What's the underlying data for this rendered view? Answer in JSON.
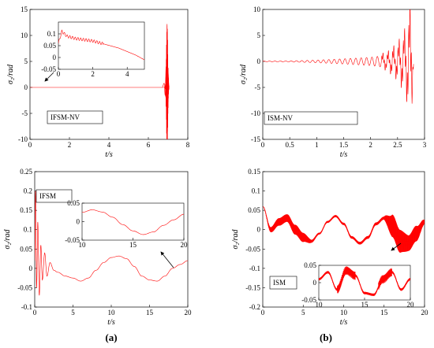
{
  "figure": {
    "panel_labels": [
      "(a)",
      "(b)"
    ]
  },
  "chart_data": [
    {
      "id": "ifsm-nv",
      "type": "line",
      "xlabel": "t/s",
      "ylabel": "σ₂/rad",
      "xlim": [
        0,
        8
      ],
      "ylim": [
        -10,
        15
      ],
      "xticks": [
        0,
        2,
        4,
        6,
        8
      ],
      "yticks": [
        -10,
        -5,
        0,
        5,
        10,
        15
      ],
      "label": "IFSM-NV",
      "grid": false,
      "series": [
        {
          "color": "#ff0000",
          "x": [
            0,
            6.7,
            6.8,
            6.85,
            6.9,
            6.93,
            6.95,
            6.97,
            7.0,
            7.05
          ],
          "y": [
            0,
            0,
            0.8,
            -1.5,
            4,
            -4,
            12.2,
            -6,
            3,
            0
          ]
        }
      ],
      "inset": {
        "xlim": [
          0,
          5
        ],
        "ylim": [
          -0.05,
          0.15
        ],
        "xticks": [
          0,
          2,
          4
        ],
        "yticks": [
          -0.05,
          0,
          0.05,
          0.1
        ],
        "yticklabels": [
          "-0.05",
          "0",
          "0.05",
          "0.1"
        ],
        "series": [
          {
            "color": "#ff0000",
            "x": [
              0,
              0.2,
              0.5,
              1,
              1.5,
              2,
              2.5,
              3,
              3.5,
              4,
              4.5,
              5
            ],
            "y": [
              0.06,
              0.11,
              0.09,
              0.08,
              0.075,
              0.07,
              0.06,
              0.05,
              0.04,
              0.025,
              0.01,
              -0.01
            ]
          }
        ]
      }
    },
    {
      "id": "ism-nv",
      "type": "line",
      "xlabel": "t/s",
      "ylabel": "σ₂/rad",
      "xlim": [
        0,
        3
      ],
      "ylim": [
        -15,
        10
      ],
      "xticks": [
        0,
        0.5,
        1,
        1.5,
        2,
        2.5,
        3
      ],
      "yticks": [
        -15,
        -10,
        -5,
        0,
        5,
        10
      ],
      "label": "ISM-NV",
      "grid": false,
      "series": [
        {
          "color": "#ff0000",
          "amplitude_envelope": {
            "t": [
              0,
              0.5,
              1,
              1.5,
              2,
              2.3,
              2.5,
              2.65,
              2.75,
              2.8
            ],
            "a": [
              0.05,
              0.1,
              0.25,
              0.5,
              0.8,
              1.2,
              2.5,
              4.5,
              8.5,
              0
            ]
          },
          "oscillation_period_s": 0.1
        }
      ]
    },
    {
      "id": "ifsm",
      "type": "line",
      "xlabel": "t/s",
      "ylabel": "σ₂/rad",
      "xlim": [
        0,
        20
      ],
      "ylim": [
        -0.1,
        0.25
      ],
      "xticks": [
        0,
        5,
        10,
        15,
        20
      ],
      "yticks": [
        -0.1,
        -0.05,
        0,
        0.05,
        0.1,
        0.15,
        0.2,
        0.25
      ],
      "yticklabels": [
        "-0.1",
        "-0.05",
        "0",
        "0.05",
        "0.1",
        "0.15",
        "0.2",
        "0.25"
      ],
      "label": "IFSM",
      "grid": false,
      "series": [
        {
          "color": "#ff0000",
          "x": [
            0,
            0.1,
            0.25,
            0.4,
            0.6,
            0.8,
            1,
            1.3,
            1.6,
            2,
            2.5,
            3,
            4,
            5,
            6,
            7,
            8,
            9,
            10,
            11,
            12,
            13,
            14,
            15,
            16,
            17,
            18,
            19,
            20
          ],
          "y": [
            0.02,
            0.2,
            -0.05,
            0.12,
            -0.07,
            0.06,
            -0.03,
            0.04,
            -0.02,
            0.015,
            -0.005,
            -0.01,
            -0.02,
            -0.025,
            -0.033,
            -0.025,
            -0.005,
            0.015,
            0.028,
            0.032,
            0.025,
            0.005,
            -0.02,
            -0.03,
            -0.033,
            -0.02,
            0.0,
            0.01,
            0.02
          ]
        }
      ],
      "inset": {
        "xlim": [
          10,
          20
        ],
        "ylim": [
          -0.05,
          0.05
        ],
        "xticks": [
          10,
          15,
          20
        ],
        "yticks": [
          -0.05,
          0,
          0.05
        ],
        "yticklabels": [
          "-0.05",
          "0",
          "0.05"
        ],
        "series": [
          {
            "color": "#ff0000",
            "x": [
              10,
              11,
              12,
              13,
              14,
              15,
              16,
              17,
              18,
              19,
              20
            ],
            "y": [
              0.025,
              0.032,
              0.026,
              0.012,
              -0.008,
              -0.025,
              -0.035,
              -0.028,
              -0.01,
              0.005,
              0.02
            ]
          }
        ]
      }
    },
    {
      "id": "ism",
      "type": "line",
      "xlabel": "t/s",
      "ylabel": "σ₂/rad",
      "xlim": [
        0,
        20
      ],
      "ylim": [
        -0.2,
        0.15
      ],
      "xticks": [
        0,
        5,
        10,
        15,
        20
      ],
      "yticks": [
        -0.2,
        -0.15,
        -0.1,
        -0.05,
        0,
        0.05,
        0.1,
        0.15
      ],
      "yticklabels": [
        "-0.2",
        "-0.15",
        "-0.1",
        "-0.05",
        "0",
        "0.05",
        "0.1",
        "0.15"
      ],
      "label": "ISM",
      "grid": false,
      "series": [
        {
          "color": "#ff0000",
          "x": [
            0,
            1,
            2,
            3,
            4,
            5,
            6,
            7,
            8,
            9,
            10,
            11,
            12,
            13,
            14,
            15,
            16,
            17,
            18,
            19,
            20
          ],
          "y": [
            0.06,
            0.0,
            0.02,
            0.03,
            0.0,
            -0.02,
            -0.03,
            -0.01,
            0.02,
            0.035,
            0.015,
            -0.02,
            -0.035,
            -0.02,
            0.015,
            0.03,
            0.01,
            -0.03,
            -0.035,
            -0.01,
            0.02
          ],
          "jitter": [
            0.12,
            0.08,
            0.06,
            0.04,
            0.04,
            0.03,
            0.008,
            0.004,
            0.004,
            0.004,
            0.004,
            0.004,
            0.004,
            0.004,
            0.004,
            0.004,
            0.03,
            0.03,
            0.02,
            0.02,
            0.005
          ]
        }
      ],
      "inset": {
        "xlim": [
          10,
          20
        ],
        "ylim": [
          -0.05,
          0.05
        ],
        "xticks": [
          10,
          15,
          20
        ],
        "yticks": [
          -0.05,
          0,
          0.05
        ],
        "yticklabels": [
          "-0.05",
          "0",
          "0.05"
        ],
        "series": [
          {
            "color": "#ff0000",
            "x": [
              10,
              11,
              12,
              13,
              14,
              15,
              16,
              17,
              18,
              19,
              20
            ],
            "y": [
              0.01,
              0.03,
              -0.02,
              0.035,
              0.02,
              -0.03,
              -0.035,
              0.01,
              0.03,
              -0.02,
              0.01
            ]
          }
        ]
      }
    }
  ]
}
